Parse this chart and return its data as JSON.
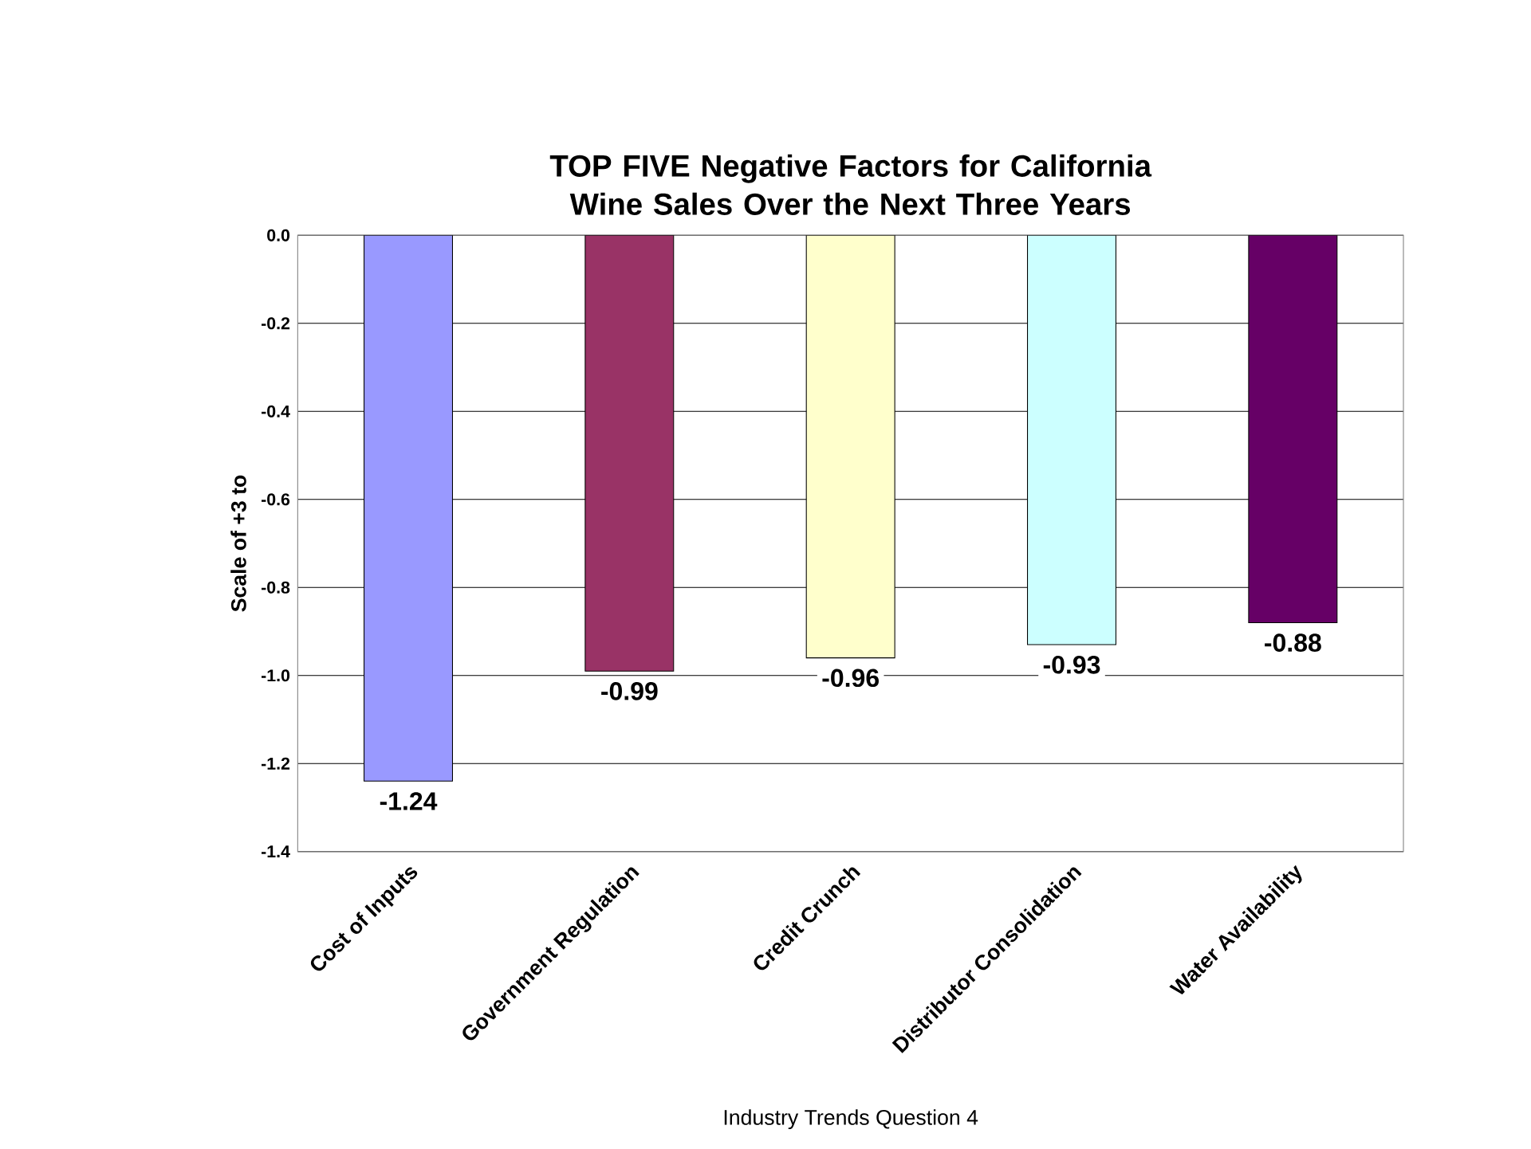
{
  "chart_data": {
    "type": "bar",
    "title": "TOP FIVE Negative  Factors for California Wine Sales Over the Next Three Years",
    "ylabel": "Scale of +3 to",
    "categories": [
      "Cost of Inputs",
      "Government Regulation",
      "Credit Crunch",
      "Distributor Consolidation",
      "Water Availability"
    ],
    "values": [
      -1.24,
      -0.99,
      -0.96,
      -0.93,
      -0.88
    ],
    "value_labels": [
      "-1.24",
      "-0.99",
      "-0.96",
      "-0.93",
      "-0.88"
    ],
    "colors": [
      "#9999ff",
      "#993366",
      "#ffffcc",
      "#ccffff",
      "#660066"
    ],
    "ylim": [
      -1.4,
      0
    ],
    "yticks": [
      {
        "value": 0,
        "label": "0.0"
      },
      -0.2,
      -0.4,
      -0.6,
      -0.8,
      {
        "value": -1.0,
        "label": "-1.0"
      },
      -1.2,
      -1.4
    ],
    "grid": "y",
    "annotations": [
      "Industry Trends Question 4"
    ]
  }
}
